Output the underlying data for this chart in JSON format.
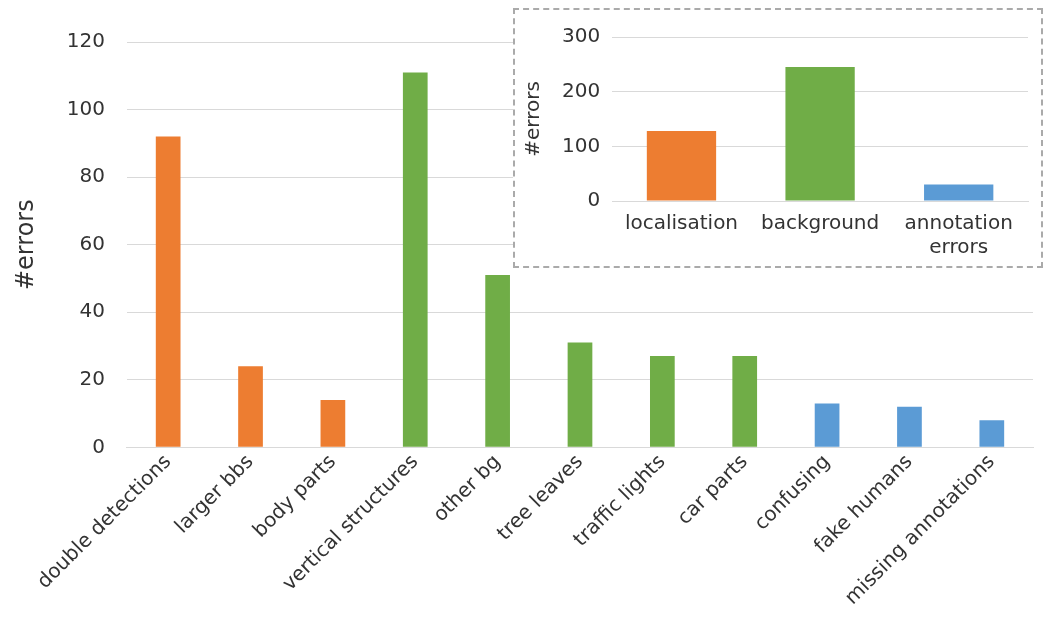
{
  "chart_data": [
    {
      "type": "bar",
      "ylabel": "#errors",
      "categories": [
        "double detections",
        "larger bbs",
        "body parts",
        "vertical structures",
        "other bg",
        "tree leaves",
        "traffic lights",
        "car parts",
        "confusing",
        "fake humans",
        "missing annotations"
      ],
      "values": [
        92,
        24,
        14,
        111,
        51,
        31,
        27,
        27,
        13,
        12,
        8
      ],
      "colors": [
        "#ed7d31",
        "#ed7d31",
        "#ed7d31",
        "#70ad47",
        "#70ad47",
        "#70ad47",
        "#70ad47",
        "#70ad47",
        "#5b9bd5",
        "#5b9bd5",
        "#5b9bd5"
      ],
      "ylim": [
        0,
        120
      ],
      "yticks": [
        0,
        20,
        40,
        60,
        80,
        100,
        120
      ],
      "grid": "y",
      "legend": false
    },
    {
      "type": "bar",
      "ylabel": "#errors",
      "categories": [
        "localisation",
        "background",
        "annotation errors"
      ],
      "values": [
        128,
        245,
        30
      ],
      "colors": [
        "#ed7d31",
        "#70ad47",
        "#5b9bd5"
      ],
      "ylim": [
        0,
        300
      ],
      "yticks": [
        0,
        100,
        200,
        300
      ],
      "grid": "y",
      "legend": false
    }
  ]
}
